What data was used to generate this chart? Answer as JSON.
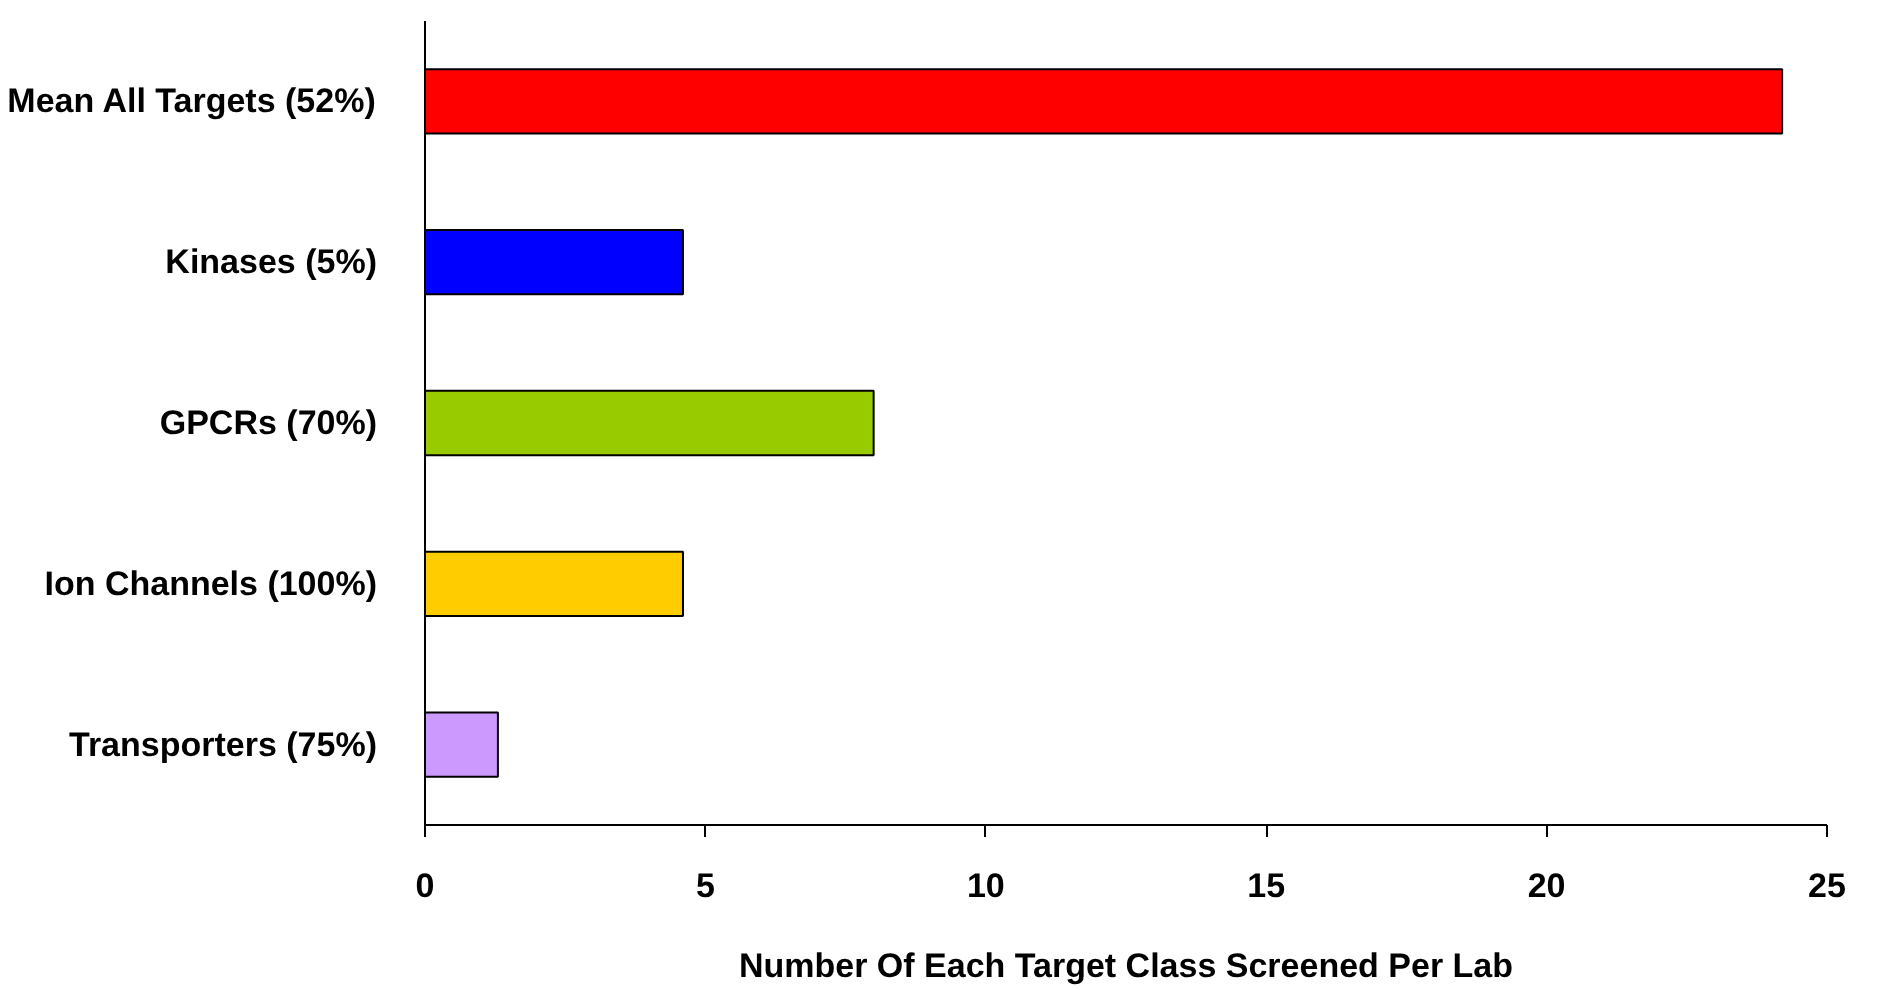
{
  "chart_data": {
    "type": "bar",
    "orientation": "horizontal",
    "xlabel": "Number Of Each Target Class Screened Per Lab",
    "categories": [
      "Mean All Targets (52%)",
      "Kinases (5%)",
      "GPCRs (70%)",
      "Ion Channels (100%)",
      "Transporters (75%)"
    ],
    "values": [
      24.2,
      4.6,
      8.0,
      4.6,
      1.3
    ],
    "colors": [
      "#ff0000",
      "#0000ff",
      "#99cc00",
      "#ffcc00",
      "#cc99ff"
    ],
    "xlim": [
      0,
      25
    ],
    "xticks": [
      0,
      5,
      10,
      15,
      20,
      25
    ],
    "grid": false
  }
}
